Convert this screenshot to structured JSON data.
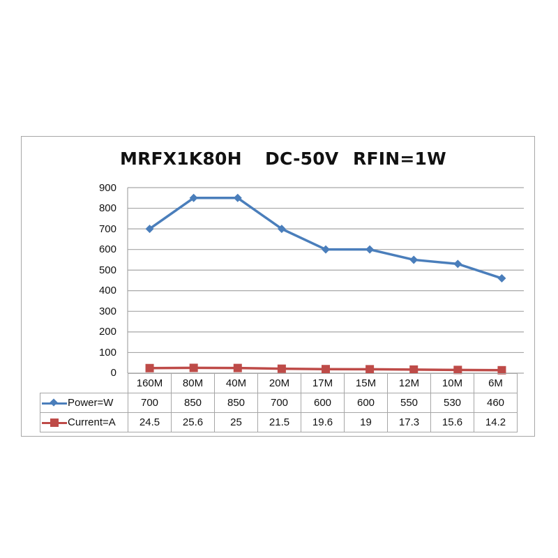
{
  "chart_data": {
    "type": "line",
    "title": "MRFX1K80H      DC-50V    RFIN=1W",
    "title_parts": [
      "MRFX1K80H",
      "DC-50V",
      "RFIN=1W"
    ],
    "categories": [
      "160M",
      "80M",
      "40M",
      "20M",
      "17M",
      "15M",
      "12M",
      "10M",
      "6M"
    ],
    "series": [
      {
        "name": "Power=W",
        "values": [
          700,
          850,
          850,
          700,
          600,
          600,
          550,
          530,
          460
        ],
        "color": "#4a7ebb",
        "marker": "diamond"
      },
      {
        "name": "Current=A",
        "values": [
          24.5,
          25.6,
          25,
          21.5,
          19.6,
          19,
          17.3,
          15.6,
          14.2
        ],
        "color": "#be4b48",
        "marker": "square"
      }
    ],
    "y_ticks": [
      "0",
      "100",
      "200",
      "300",
      "400",
      "500",
      "600",
      "700",
      "800",
      "900"
    ],
    "xlabel": "",
    "ylabel": "",
    "ylim": [
      0,
      900
    ],
    "grid": true,
    "legend_position": "data-table",
    "data_table": true
  },
  "table": {
    "rows": [
      {
        "label": "Power=W",
        "cells": [
          "700",
          "850",
          "850",
          "700",
          "600",
          "600",
          "550",
          "530",
          "460"
        ]
      },
      {
        "label": "Current=A",
        "cells": [
          "24.5",
          "25.6",
          "25",
          "21.5",
          "19.6",
          "19",
          "17.3",
          "15.6",
          "14.2"
        ]
      }
    ]
  },
  "colors": {
    "power": "#4a7ebb",
    "current": "#be4b48",
    "grid": "#a6a6a6",
    "frame": "#a6a6a6"
  }
}
